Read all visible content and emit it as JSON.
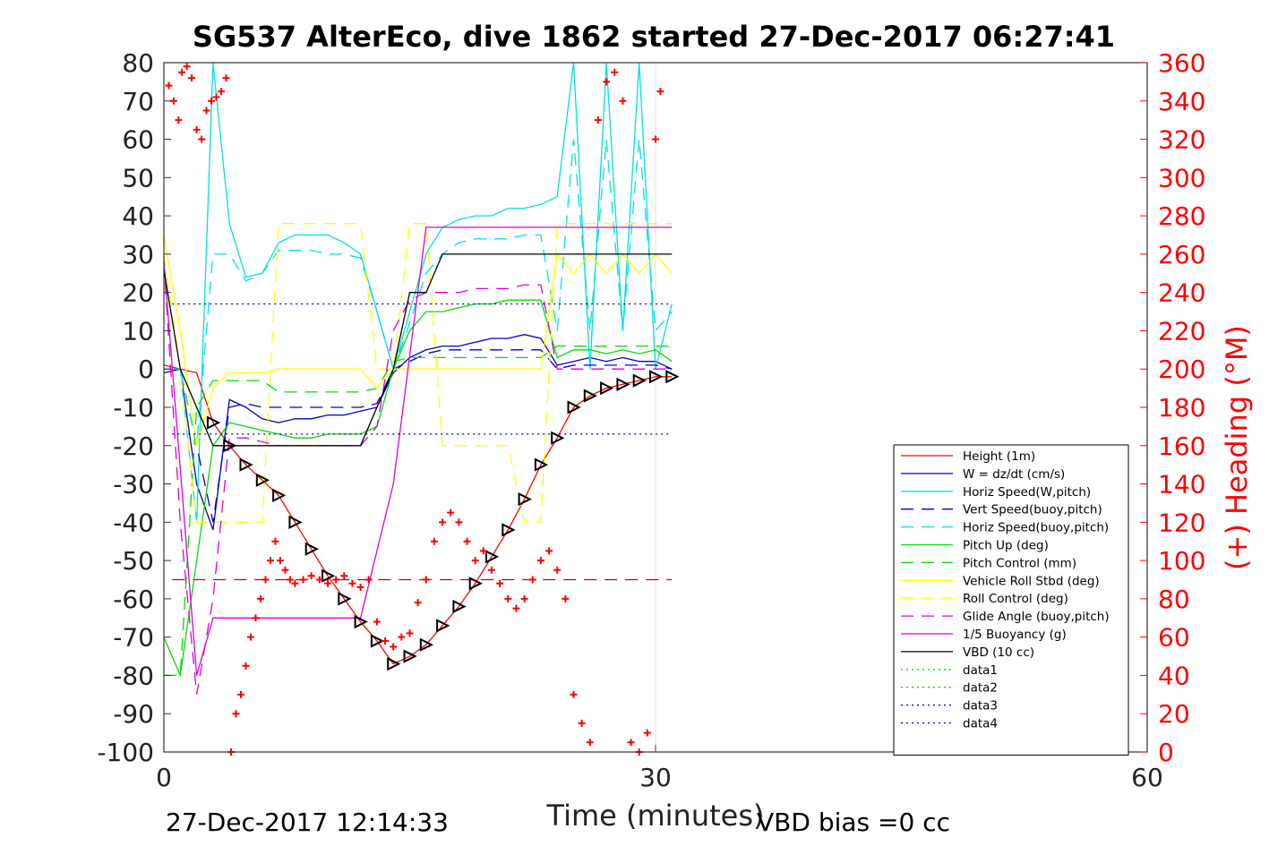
{
  "chart_data": {
    "type": "line",
    "title": "SG537 AlterEco, dive 1862 started 27-Dec-2017 06:27:41",
    "xlabel": "Time (minutes)",
    "ylabel": "",
    "y2label": "(+) Heading (°M)",
    "xlim": [
      0,
      60
    ],
    "ylim": [
      -100,
      80
    ],
    "y2lim": [
      0,
      360
    ],
    "xticks": [
      "0",
      "30",
      "60"
    ],
    "yticks": [
      "80",
      "70",
      "60",
      "50",
      "40",
      "30",
      "20",
      "10",
      "0",
      "-10",
      "-20",
      "-30",
      "-40",
      "-50",
      "-60",
      "-70",
      "-80",
      "-90",
      "-100"
    ],
    "y2ticks": [
      "360",
      "340",
      "320",
      "300",
      "280",
      "260",
      "240",
      "220",
      "200",
      "180",
      "160",
      "140",
      "120",
      "100",
      "80",
      "60",
      "40",
      "20",
      "0"
    ],
    "footer_left": "27-Dec-2017 12:14:33",
    "footer_right": "VBD bias =0 cc",
    "legend_position": "lower-right",
    "colors": {
      "height": "#ff0000",
      "w": "#0000cc",
      "horiz_speed": "#00e0e0",
      "pitch": "#00dd00",
      "roll": "#ffff00",
      "glide": "#dd00dd",
      "vbd": "#000000",
      "heading": "#ff0000",
      "data1": "#00dd00",
      "data2": "#00dd00",
      "data3": "#0000aa",
      "data4": "#0000aa"
    },
    "series": [
      {
        "name": "Height (1m)",
        "style": "solid",
        "color": "#ff0000",
        "x": [
          0,
          2,
          3,
          4,
          5,
          6,
          7,
          8,
          9,
          10,
          11,
          12,
          13,
          14,
          15,
          16,
          17,
          18,
          19,
          20,
          21,
          22,
          23,
          24,
          25,
          26,
          27,
          28,
          29,
          30,
          31
        ],
        "y": [
          1,
          -1,
          -14,
          -20,
          -25,
          -29,
          -33,
          -40,
          -47,
          -54,
          -60,
          -66,
          -71,
          -77,
          -75,
          -72,
          -67,
          -62,
          -56,
          -49,
          -42,
          -34,
          -25,
          -18,
          -10,
          -7,
          -5,
          -4,
          -3,
          -2,
          -2
        ]
      },
      {
        "name": "W = dz/dt (cm/s)",
        "style": "solid",
        "color": "#0000cc",
        "x": [
          0,
          1,
          2,
          3,
          4,
          5,
          6,
          7,
          8,
          9,
          10,
          11,
          12,
          13,
          14,
          15,
          16,
          17,
          18,
          19,
          20,
          21,
          22,
          23,
          24,
          25,
          26,
          27,
          28,
          29,
          30,
          31
        ],
        "y": [
          -1,
          0,
          -30,
          -42,
          -8,
          -10,
          -13,
          -14,
          -13,
          -13,
          -12,
          -12,
          -11,
          -10,
          -1,
          3,
          5,
          6,
          6,
          7,
          8,
          8,
          9,
          8,
          1,
          2,
          3,
          2,
          3,
          2,
          2,
          0
        ]
      },
      {
        "name": "Horiz Speed(W,pitch)",
        "style": "solid",
        "color": "#00e0e0",
        "x": [
          0,
          1,
          2,
          3,
          4,
          5,
          6,
          7,
          8,
          9,
          10,
          11,
          12,
          13,
          14,
          15,
          16,
          17,
          18,
          19,
          20,
          21,
          22,
          23,
          24,
          25,
          26,
          27,
          28,
          29,
          30,
          31
        ],
        "y": [
          0,
          0,
          -40,
          80,
          38,
          24,
          25,
          33,
          35,
          35,
          35,
          33,
          30,
          15,
          0,
          15,
          30,
          37,
          39,
          40,
          40,
          42,
          42,
          43,
          45,
          80,
          0,
          80,
          10,
          80,
          0,
          17
        ]
      },
      {
        "name": "Vert Speed(buoy,pitch)",
        "style": "dashed",
        "color": "#0000cc",
        "x": [
          0,
          1,
          2,
          3,
          4,
          5,
          6,
          7,
          8,
          9,
          10,
          11,
          12,
          13,
          14,
          15,
          16,
          17,
          18,
          19,
          20,
          21,
          22,
          23,
          24,
          25,
          26,
          27,
          28,
          29,
          30,
          31
        ],
        "y": [
          0,
          0,
          -20,
          -40,
          -10,
          -9,
          -10,
          -10,
          -10,
          -10,
          -10,
          -10,
          -10,
          -9,
          0,
          2,
          4,
          5,
          5,
          5,
          5,
          5,
          5,
          5,
          0,
          1,
          1,
          1,
          1,
          1,
          1,
          0
        ]
      },
      {
        "name": "Horiz Speed(buoy,pitch)",
        "style": "dashed",
        "color": "#00e0e0",
        "x": [
          0,
          1,
          2,
          3,
          4,
          5,
          6,
          7,
          8,
          9,
          10,
          11,
          12,
          13,
          14,
          15,
          16,
          17,
          18,
          19,
          20,
          21,
          22,
          23,
          24,
          25,
          26,
          27,
          28,
          29,
          30,
          31
        ],
        "y": [
          0,
          0,
          -20,
          30,
          30,
          23,
          25,
          31,
          31,
          31,
          30,
          30,
          29,
          15,
          0,
          12,
          25,
          30,
          33,
          34,
          34,
          34,
          35,
          35,
          10,
          60,
          10,
          60,
          10,
          60,
          10,
          15
        ]
      },
      {
        "name": "Pitch Up (deg)",
        "style": "solid",
        "color": "#00dd00",
        "x": [
          0,
          1,
          2,
          3,
          4,
          5,
          6,
          7,
          8,
          9,
          10,
          11,
          12,
          13,
          14,
          15,
          16,
          17,
          18,
          19,
          20,
          21,
          22,
          23,
          24,
          25,
          26,
          27,
          28,
          29,
          30,
          31
        ],
        "y": [
          -70,
          -80,
          -50,
          -20,
          -14,
          -15,
          -16,
          -17,
          -18,
          -18,
          -17,
          -17,
          -17,
          -15,
          0,
          10,
          15,
          15,
          16,
          17,
          17,
          18,
          18,
          18,
          3,
          5,
          5,
          4,
          5,
          4,
          5,
          2
        ]
      },
      {
        "name": "Pitch Control (mm)",
        "style": "dashed",
        "color": "#00dd00",
        "x": [
          0,
          1,
          2,
          3,
          4,
          5,
          6,
          7,
          8,
          9,
          10,
          11,
          12,
          13,
          14,
          15,
          16,
          17,
          18,
          19,
          20,
          21,
          22,
          23,
          24,
          25,
          26,
          27,
          28,
          29,
          30,
          31
        ],
        "y": [
          -80,
          -80,
          -10,
          -3,
          -3,
          -3,
          -3,
          -6,
          -6,
          -6,
          -6,
          -6,
          -6,
          -5,
          2,
          3,
          3,
          3,
          3,
          3,
          3,
          3,
          3,
          3,
          6,
          6,
          6,
          6,
          6,
          6,
          6,
          6
        ]
      },
      {
        "name": "Vehicle Roll Stbd (deg)",
        "style": "solid",
        "color": "#ffff00",
        "x": [
          0,
          1,
          2,
          3,
          4,
          5,
          6,
          7,
          8,
          9,
          10,
          11,
          12,
          13,
          14,
          15,
          16,
          17,
          18,
          19,
          20,
          21,
          22,
          23,
          24,
          25,
          26,
          27,
          28,
          29,
          30,
          31
        ],
        "y": [
          35,
          10,
          -20,
          -5,
          -1,
          -1,
          -1,
          0,
          0,
          0,
          0,
          0,
          0,
          -5,
          0,
          0,
          0,
          0,
          0,
          0,
          0,
          0,
          0,
          0,
          30,
          25,
          30,
          25,
          30,
          25,
          30,
          25
        ]
      },
      {
        "name": "Roll Control (deg)",
        "style": "dashed",
        "color": "#ffff00",
        "x": [
          0,
          1,
          2,
          3,
          4,
          5,
          6,
          7,
          8,
          9,
          10,
          11,
          12,
          13,
          14,
          15,
          16,
          17,
          18,
          19,
          20,
          21,
          22,
          23,
          24,
          25,
          26,
          27,
          28,
          29,
          30,
          31
        ],
        "y": [
          30,
          0,
          -40,
          -40,
          -40,
          -40,
          -40,
          38,
          38,
          38,
          38,
          38,
          38,
          0,
          0,
          38,
          38,
          -20,
          -20,
          -20,
          -20,
          -20,
          -40,
          -40,
          38,
          38,
          38,
          38,
          38,
          38,
          38,
          38
        ]
      },
      {
        "name": "Glide Angle (buoy,pitch)",
        "style": "dashed",
        "color": "#dd00dd",
        "x": [
          0,
          1,
          2,
          3,
          4,
          5,
          6,
          7,
          8,
          9,
          10,
          11,
          12,
          13,
          14,
          15,
          16,
          17,
          18,
          19,
          20,
          21,
          22,
          23,
          24,
          25,
          26,
          27,
          28,
          29,
          30,
          31
        ],
        "y": [
          28,
          -40,
          -85,
          -60,
          -18,
          -18,
          -19,
          -20,
          -20,
          -20,
          -20,
          -20,
          -20,
          -15,
          10,
          18,
          20,
          20,
          20,
          21,
          21,
          21,
          22,
          22,
          0,
          0,
          0,
          0,
          0,
          0,
          0,
          0
        ]
      },
      {
        "name": "1/5 Buoyancy (g)",
        "style": "solid",
        "color": "#dd00dd",
        "x": [
          0,
          2,
          3,
          4,
          12,
          14,
          16,
          17,
          31
        ],
        "y": [
          28,
          -80,
          -65,
          -65,
          -65,
          -30,
          37,
          37,
          37
        ]
      },
      {
        "name": "VBD (10 cc)",
        "style": "solid",
        "color": "#000000",
        "x": [
          0,
          1,
          2,
          3,
          12,
          14,
          15,
          16,
          17,
          31
        ],
        "y": [
          26,
          0,
          -10,
          -20,
          -20,
          0,
          20,
          20,
          30,
          30
        ]
      },
      {
        "name": "data1",
        "style": "dotted",
        "color": "#00dd00",
        "x": [],
        "y": []
      },
      {
        "name": "data2",
        "style": "dotted",
        "color": "#00dd00",
        "x": [],
        "y": []
      },
      {
        "name": "data3",
        "style": "dotted",
        "color": "#0000aa",
        "x": [
          0.5,
          31
        ],
        "y": [
          17,
          17
        ]
      },
      {
        "name": "data4",
        "style": "dotted",
        "color": "#0000aa",
        "x": [
          0.5,
          31
        ],
        "y": [
          -17,
          -17
        ]
      }
    ],
    "extra_lines": [
      {
        "style": "dashed",
        "color": "#cc0000",
        "x": [
          0.5,
          31
        ],
        "y": [
          -55,
          -55
        ]
      }
    ],
    "heading_points": {
      "axis": "right",
      "x": [
        0.3,
        0.6,
        0.9,
        1.1,
        1.4,
        1.7,
        2.0,
        2.3,
        2.6,
        2.9,
        3.2,
        3.5,
        3.8,
        4.1,
        4.4,
        4.7,
        5.0,
        5.3,
        5.6,
        5.9,
        6.2,
        6.5,
        6.8,
        7.1,
        7.4,
        7.7,
        8.0,
        8.5,
        9.0,
        9.5,
        10.0,
        10.5,
        11.0,
        11.5,
        12.0,
        12.5,
        13.0,
        13.5,
        14.0,
        14.5,
        15.0,
        15.5,
        16.0,
        16.5,
        17.0,
        17.5,
        18.0,
        18.5,
        19.0,
        19.5,
        20.0,
        20.5,
        21.0,
        21.5,
        22.0,
        22.5,
        23.0,
        23.5,
        24.0,
        24.5,
        25.0,
        25.5,
        26.0,
        26.5,
        27.0,
        27.5,
        28.0,
        28.5,
        29.0,
        29.5,
        30.0,
        30.3
      ],
      "y": [
        348,
        340,
        330,
        355,
        358,
        352,
        325,
        320,
        335,
        340,
        342,
        345,
        352,
        0,
        20,
        30,
        45,
        60,
        70,
        80,
        90,
        100,
        110,
        100,
        95,
        90,
        88,
        90,
        92,
        90,
        88,
        90,
        92,
        88,
        86,
        90,
        68,
        58,
        55,
        60,
        62,
        78,
        90,
        110,
        120,
        125,
        120,
        110,
        100,
        105,
        95,
        88,
        80,
        75,
        80,
        90,
        100,
        105,
        95,
        80,
        30,
        15,
        5,
        330,
        350,
        355,
        340,
        5,
        0,
        10,
        320,
        345
      ]
    }
  }
}
